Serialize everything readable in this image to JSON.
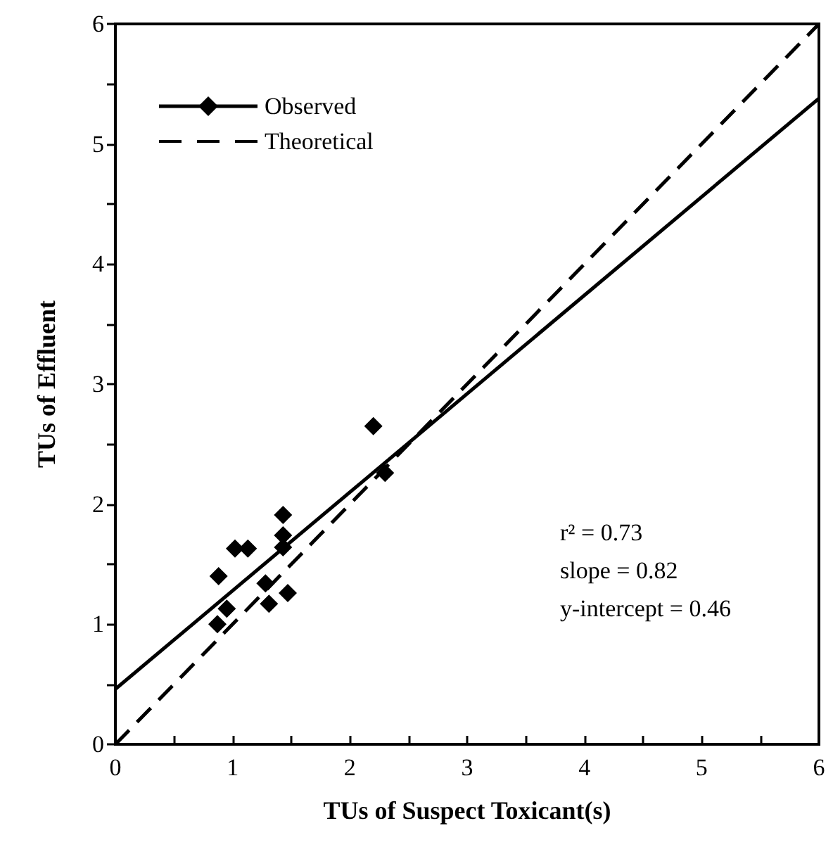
{
  "chart_data": {
    "type": "scatter",
    "xlabel": "TUs of Suspect Toxicant(s)",
    "ylabel": "TUs of Effluent",
    "xlim": [
      0,
      6
    ],
    "ylim": [
      0,
      6
    ],
    "xticks": [
      0,
      {
        "value": 0.5,
        "label": null
      },
      1,
      {
        "value": 1.5,
        "label": null
      },
      2,
      {
        "value": 2.5,
        "label": null
      },
      3,
      {
        "value": 3.5,
        "label": null
      },
      4,
      {
        "value": 4.5,
        "label": null
      },
      5,
      {
        "value": 5.5,
        "label": null
      },
      6
    ],
    "yticks": [
      0,
      {
        "value": 0.5,
        "label": null
      },
      1,
      {
        "value": 1.5,
        "label": null
      },
      2,
      {
        "value": 2.5,
        "label": null
      },
      3,
      {
        "value": 3.5,
        "label": null
      },
      4,
      {
        "value": 4.5,
        "label": null
      },
      5,
      {
        "value": 5.5,
        "label": null
      },
      6
    ],
    "series": [
      {
        "name": "Observed",
        "marker": "diamond",
        "color": "#000000",
        "x": [
          0.88,
          0.87,
          0.95,
          1.02,
          1.13,
          1.28,
          1.31,
          1.43,
          1.43,
          1.43,
          1.47,
          2.2,
          2.3
        ],
        "values": [
          1.4,
          1.0,
          1.13,
          1.63,
          1.63,
          1.34,
          1.17,
          1.91,
          1.74,
          1.64,
          1.26,
          2.65,
          2.26
        ]
      },
      {
        "type": "line",
        "marker": "none",
        "line_style": "solid",
        "color": "#000000",
        "x": [
          0,
          6
        ],
        "values": [
          0.46,
          5.38
        ]
      },
      {
        "name": "Theoretical",
        "type": "line",
        "marker": "none",
        "line_style": "dashed",
        "color": "#000000",
        "x": [
          0,
          6
        ],
        "values": [
          0,
          6
        ]
      }
    ],
    "annotations": [
      "r² = 0.73",
      "slope = 0.82",
      "y-intercept = 0.46"
    ],
    "legend": "top left",
    "grid": false
  }
}
